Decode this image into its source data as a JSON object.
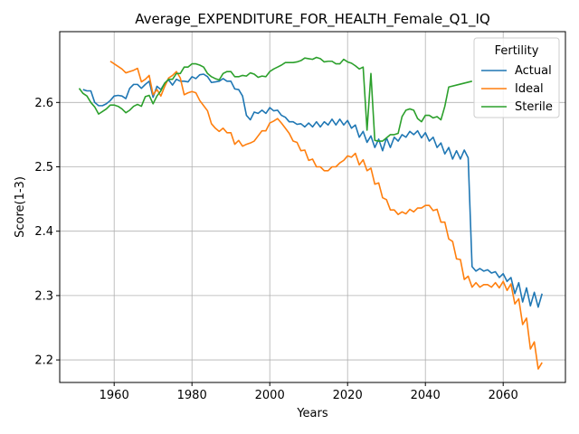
{
  "chart_data": {
    "type": "line",
    "title": "Average_EXPENDITURE_FOR_HEALTH_Female_Q1_IQ",
    "xlabel": "Years",
    "ylabel": "Score(1-3)",
    "xlim": [
      1946,
      2076
    ],
    "ylim": [
      2.165,
      2.71
    ],
    "xticks": [
      1960,
      1980,
      2000,
      2020,
      2040,
      2060
    ],
    "yticks": [
      2.2,
      2.3,
      2.4,
      2.5,
      2.6
    ],
    "xtick_labels": [
      "1960",
      "1980",
      "2000",
      "2020",
      "2040",
      "2060"
    ],
    "ytick_labels": [
      "2.2",
      "2.3",
      "2.4",
      "2.5",
      "2.6"
    ],
    "grid": true,
    "legend": {
      "title": "Fertility",
      "position": "top-right"
    },
    "series": [
      {
        "name": "Actual",
        "color": "#1f77b4",
        "x": [
          1952,
          1953,
          1954,
          1955,
          1956,
          1957,
          1958,
          1959,
          1960,
          1961,
          1962,
          1963,
          1964,
          1965,
          1966,
          1967,
          1968,
          1969,
          1970,
          1971,
          1972,
          1973,
          1974,
          1975,
          1976,
          1977,
          1978,
          1979,
          1980,
          1981,
          1982,
          1983,
          1984,
          1985,
          1986,
          1987,
          1988,
          1989,
          1990,
          1991,
          1992,
          1993,
          1994,
          1995,
          1996,
          1997,
          1998,
          1999,
          2000,
          2001,
          2002,
          2003,
          2004,
          2005,
          2006,
          2007,
          2008,
          2009,
          2010,
          2011,
          2012,
          2013,
          2014,
          2015,
          2016,
          2017,
          2018,
          2019,
          2020,
          2021,
          2022,
          2023,
          2024,
          2025,
          2026,
          2027,
          2028,
          2029,
          2030,
          2031,
          2032,
          2033,
          2034,
          2035,
          2036,
          2037,
          2038,
          2039,
          2040,
          2041,
          2042,
          2043,
          2044,
          2045,
          2046,
          2047,
          2048,
          2049,
          2050,
          2051,
          2052,
          2053,
          2054,
          2055,
          2056,
          2057,
          2058,
          2059,
          2060,
          2061,
          2062,
          2063,
          2064,
          2065,
          2066,
          2067,
          2068,
          2069,
          2070
        ],
        "values": [
          2.62,
          2.618,
          2.618,
          2.6,
          2.595,
          2.595,
          2.598,
          2.603,
          2.61,
          2.611,
          2.61,
          2.606,
          2.622,
          2.628,
          2.628,
          2.622,
          2.628,
          2.633,
          2.608,
          2.625,
          2.62,
          2.63,
          2.635,
          2.627,
          2.636,
          2.633,
          2.633,
          2.632,
          2.64,
          2.637,
          2.643,
          2.644,
          2.64,
          2.631,
          2.632,
          2.633,
          2.637,
          2.633,
          2.633,
          2.621,
          2.62,
          2.61,
          2.58,
          2.573,
          2.585,
          2.583,
          2.588,
          2.583,
          2.592,
          2.587,
          2.588,
          2.58,
          2.577,
          2.57,
          2.57,
          2.566,
          2.567,
          2.562,
          2.568,
          2.562,
          2.57,
          2.562,
          2.57,
          2.565,
          2.574,
          2.565,
          2.574,
          2.565,
          2.572,
          2.56,
          2.565,
          2.546,
          2.555,
          2.538,
          2.548,
          2.53,
          2.543,
          2.525,
          2.545,
          2.53,
          2.546,
          2.54,
          2.55,
          2.546,
          2.555,
          2.55,
          2.556,
          2.545,
          2.553,
          2.54,
          2.546,
          2.53,
          2.537,
          2.52,
          2.53,
          2.512,
          2.525,
          2.512,
          2.526,
          2.514,
          2.345,
          2.338,
          2.342,
          2.338,
          2.34,
          2.335,
          2.337,
          2.328,
          2.334,
          2.322,
          2.328,
          2.303,
          2.32,
          2.29,
          2.312,
          2.284,
          2.305,
          2.282,
          2.303
        ]
      },
      {
        "name": "Ideal",
        "color": "#ff7f0e",
        "x": [
          1959,
          1960,
          1961,
          1962,
          1963,
          1964,
          1965,
          1966,
          1967,
          1968,
          1969,
          1970,
          1971,
          1972,
          1973,
          1974,
          1975,
          1976,
          1977,
          1978,
          1979,
          1980,
          1981,
          1982,
          1983,
          1984,
          1985,
          1986,
          1987,
          1988,
          1989,
          1990,
          1991,
          1992,
          1993,
          1994,
          1995,
          1996,
          1997,
          1998,
          1999,
          2000,
          2001,
          2002,
          2003,
          2004,
          2005,
          2006,
          2007,
          2008,
          2009,
          2010,
          2011,
          2012,
          2013,
          2014,
          2015,
          2016,
          2017,
          2018,
          2019,
          2020,
          2021,
          2022,
          2023,
          2024,
          2025,
          2026,
          2027,
          2028,
          2029,
          2030,
          2031,
          2032,
          2033,
          2034,
          2035,
          2036,
          2037,
          2038,
          2039,
          2040,
          2041,
          2042,
          2043,
          2044,
          2045,
          2046,
          2047,
          2048,
          2049,
          2050,
          2051,
          2052,
          2053,
          2054,
          2055,
          2056,
          2057,
          2058,
          2059,
          2060,
          2061,
          2062,
          2063,
          2064,
          2065,
          2066,
          2067,
          2068,
          2069,
          2070
        ],
        "values": [
          2.664,
          2.66,
          2.656,
          2.652,
          2.646,
          2.648,
          2.65,
          2.653,
          2.632,
          2.636,
          2.642,
          2.612,
          2.62,
          2.61,
          2.625,
          2.638,
          2.642,
          2.648,
          2.638,
          2.612,
          2.615,
          2.617,
          2.615,
          2.603,
          2.595,
          2.587,
          2.567,
          2.56,
          2.555,
          2.56,
          2.553,
          2.553,
          2.535,
          2.541,
          2.532,
          2.535,
          2.537,
          2.54,
          2.548,
          2.556,
          2.556,
          2.568,
          2.571,
          2.575,
          2.568,
          2.56,
          2.552,
          2.54,
          2.538,
          2.525,
          2.526,
          2.51,
          2.512,
          2.5,
          2.5,
          2.494,
          2.494,
          2.5,
          2.5,
          2.506,
          2.51,
          2.517,
          2.515,
          2.521,
          2.503,
          2.511,
          2.494,
          2.498,
          2.473,
          2.475,
          2.452,
          2.449,
          2.433,
          2.433,
          2.426,
          2.43,
          2.427,
          2.434,
          2.43,
          2.436,
          2.436,
          2.44,
          2.44,
          2.432,
          2.434,
          2.414,
          2.414,
          2.388,
          2.384,
          2.357,
          2.356,
          2.325,
          2.33,
          2.313,
          2.32,
          2.313,
          2.317,
          2.317,
          2.313,
          2.32,
          2.312,
          2.322,
          2.308,
          2.318,
          2.287,
          2.295,
          2.255,
          2.265,
          2.217,
          2.228,
          2.186,
          2.196
        ]
      },
      {
        "name": "Sterile",
        "color": "#2ca02c",
        "x": [
          1951,
          1952,
          1953,
          1954,
          1955,
          1956,
          1957,
          1958,
          1959,
          1960,
          1961,
          1962,
          1963,
          1964,
          1965,
          1966,
          1967,
          1968,
          1969,
          1970,
          1971,
          1972,
          1973,
          1974,
          1975,
          1976,
          1977,
          1978,
          1979,
          1980,
          1981,
          1982,
          1983,
          1984,
          1985,
          1986,
          1987,
          1988,
          1989,
          1990,
          1991,
          1992,
          1993,
          1994,
          1995,
          1996,
          1997,
          1998,
          1999,
          2000,
          2001,
          2002,
          2003,
          2004,
          2005,
          2006,
          2007,
          2008,
          2009,
          2010,
          2011,
          2012,
          2013,
          2014,
          2015,
          2016,
          2017,
          2018,
          2019,
          2020,
          2021,
          2022,
          2023,
          2024,
          2025,
          2026,
          2027,
          2028,
          2029,
          2030,
          2031,
          2032,
          2033,
          2034,
          2035,
          2036,
          2037,
          2038,
          2039,
          2040,
          2041,
          2042,
          2043,
          2044,
          2045,
          2046,
          2052
        ],
        "values": [
          2.622,
          2.614,
          2.61,
          2.6,
          2.593,
          2.582,
          2.586,
          2.59,
          2.596,
          2.596,
          2.594,
          2.59,
          2.584,
          2.588,
          2.594,
          2.597,
          2.594,
          2.609,
          2.611,
          2.598,
          2.61,
          2.618,
          2.63,
          2.636,
          2.636,
          2.645,
          2.645,
          2.655,
          2.655,
          2.66,
          2.66,
          2.658,
          2.655,
          2.645,
          2.64,
          2.637,
          2.635,
          2.645,
          2.648,
          2.648,
          2.64,
          2.64,
          2.642,
          2.641,
          2.646,
          2.644,
          2.639,
          2.641,
          2.64,
          2.648,
          2.652,
          2.655,
          2.658,
          2.662,
          2.662,
          2.662,
          2.663,
          2.665,
          2.669,
          2.668,
          2.667,
          2.67,
          2.668,
          2.663,
          2.664,
          2.664,
          2.66,
          2.66,
          2.667,
          2.663,
          2.661,
          2.657,
          2.652,
          2.655,
          2.557,
          2.645,
          2.541,
          2.54,
          2.54,
          2.545,
          2.55,
          2.55,
          2.552,
          2.578,
          2.588,
          2.59,
          2.588,
          2.575,
          2.57,
          2.58,
          2.58,
          2.576,
          2.578,
          2.573,
          2.594,
          2.624,
          2.633
        ]
      }
    ]
  }
}
